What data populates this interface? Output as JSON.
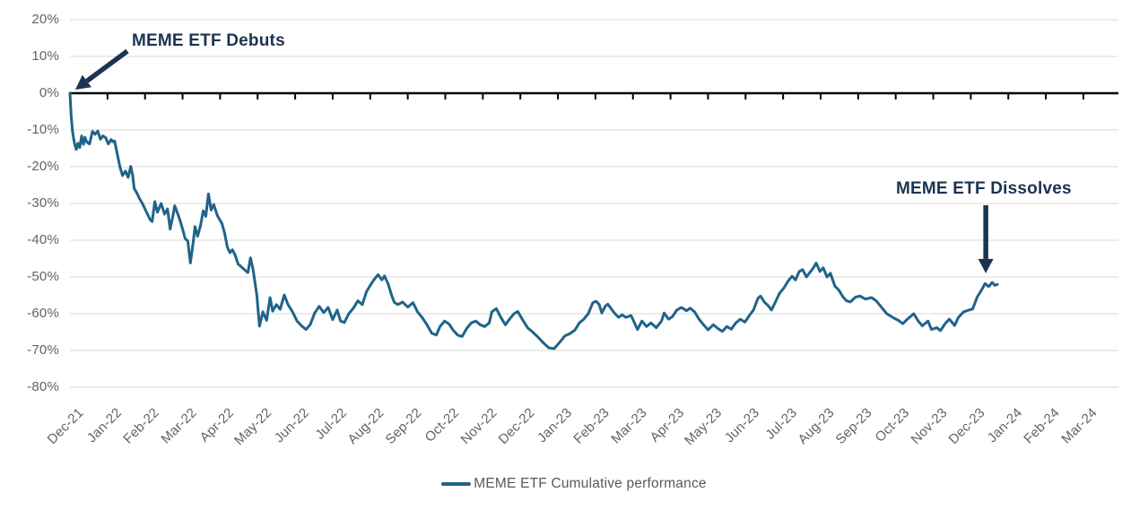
{
  "colors": {
    "series_line": "#1f6488",
    "annotation": "#1c3352",
    "axis_line": "#000000",
    "gridline": "#e0e0e0",
    "axis_text": "#636363",
    "legend_text": "#595959"
  },
  "legend": {
    "label": "MEME ETF Cumulative performance"
  },
  "annotations": {
    "debuts": "MEME ETF Debuts",
    "dissolves": "MEME ETF Dissolves"
  },
  "chart_data": {
    "type": "line",
    "title": "",
    "xlabel": "",
    "ylabel": "",
    "grid": "horizontal",
    "legend_position": "bottom-center",
    "ylim": [
      -80,
      20
    ],
    "y_axis": {
      "ticks": [
        {
          "label": "20%",
          "value": 20
        },
        {
          "label": "10%",
          "value": 10
        },
        {
          "label": "0%",
          "value": 0
        },
        {
          "label": "-10%",
          "value": -10
        },
        {
          "label": "-20%",
          "value": -20
        },
        {
          "label": "-30%",
          "value": -30
        },
        {
          "label": "-40%",
          "value": -40
        },
        {
          "label": "-50%",
          "value": -50
        },
        {
          "label": "-60%",
          "value": -60
        },
        {
          "label": "-70%",
          "value": -70
        },
        {
          "label": "-80%",
          "value": -80
        }
      ]
    },
    "x_axis": {
      "ticks": [
        "Dec-21",
        "Jan-22",
        "Feb-22",
        "Mar-22",
        "Apr-22",
        "May-22",
        "Jun-22",
        "Jul-22",
        "Aug-22",
        "Sep-22",
        "Oct-22",
        "Nov-22",
        "Dec-22",
        "Jan-23",
        "Feb-23",
        "Mar-23",
        "Apr-23",
        "May-23",
        "Jun-23",
        "Jul-23",
        "Aug-23",
        "Sep-23",
        "Oct-23",
        "Nov-23",
        "Dec-23",
        "Jan-24",
        "Feb-24",
        "Mar-24"
      ]
    },
    "annotations": [
      {
        "text": "MEME ETF Debuts",
        "points_to": {
          "month": 0,
          "value": 0
        }
      },
      {
        "text": "MEME ETF Dissolves",
        "points_to": {
          "month": 24.4,
          "value": -49
        }
      }
    ],
    "series": [
      {
        "name": "MEME ETF Cumulative performance",
        "x_unit": "months_after_Dec-21",
        "y_unit": "percent",
        "points": [
          [
            0,
            0
          ],
          [
            0.03,
            -6
          ],
          [
            0.07,
            -10.5
          ],
          [
            0.12,
            -13.6
          ],
          [
            0.17,
            -15.3
          ],
          [
            0.21,
            -13.6
          ],
          [
            0.26,
            -14.8
          ],
          [
            0.31,
            -11.6
          ],
          [
            0.36,
            -13.9
          ],
          [
            0.4,
            -12
          ],
          [
            0.45,
            -13.3
          ],
          [
            0.52,
            -13.8
          ],
          [
            0.6,
            -10.4
          ],
          [
            0.67,
            -11.2
          ],
          [
            0.74,
            -10.3
          ],
          [
            0.81,
            -12.5
          ],
          [
            0.88,
            -11.6
          ],
          [
            0.95,
            -12.1
          ],
          [
            1.02,
            -13.8
          ],
          [
            1.1,
            -12.6
          ],
          [
            1.14,
            -13.2
          ],
          [
            1.19,
            -13
          ],
          [
            1.26,
            -16.5
          ],
          [
            1.33,
            -20
          ],
          [
            1.4,
            -22.4
          ],
          [
            1.48,
            -21.2
          ],
          [
            1.55,
            -22.9
          ],
          [
            1.62,
            -19.9
          ],
          [
            1.67,
            -22.3
          ],
          [
            1.71,
            -25.9
          ],
          [
            1.79,
            -27.3
          ],
          [
            1.86,
            -28.8
          ],
          [
            1.93,
            -30
          ],
          [
            2,
            -31.5
          ],
          [
            2.07,
            -33
          ],
          [
            2.14,
            -34.5
          ],
          [
            2.19,
            -34.9
          ],
          [
            2.26,
            -29.5
          ],
          [
            2.33,
            -32.4
          ],
          [
            2.43,
            -30
          ],
          [
            2.52,
            -32.9
          ],
          [
            2.6,
            -31.5
          ],
          [
            2.67,
            -37
          ],
          [
            2.74,
            -33.5
          ],
          [
            2.79,
            -30.6
          ],
          [
            2.86,
            -32.5
          ],
          [
            2.93,
            -34.5
          ],
          [
            3,
            -37
          ],
          [
            3.07,
            -39.6
          ],
          [
            3.14,
            -40.2
          ],
          [
            3.21,
            -46.2
          ],
          [
            3.29,
            -40
          ],
          [
            3.33,
            -36.3
          ],
          [
            3.4,
            -38.9
          ],
          [
            3.48,
            -36
          ],
          [
            3.55,
            -32
          ],
          [
            3.62,
            -33.5
          ],
          [
            3.69,
            -27.4
          ],
          [
            3.76,
            -31.8
          ],
          [
            3.83,
            -30.3
          ],
          [
            3.93,
            -33.4
          ],
          [
            4.05,
            -35.5
          ],
          [
            4.12,
            -38
          ],
          [
            4.19,
            -41.8
          ],
          [
            4.26,
            -43.4
          ],
          [
            4.33,
            -42.6
          ],
          [
            4.4,
            -44
          ],
          [
            4.48,
            -46.5
          ],
          [
            4.57,
            -47.3
          ],
          [
            4.67,
            -48.2
          ],
          [
            4.74,
            -48.8
          ],
          [
            4.81,
            -44.8
          ],
          [
            4.88,
            -48
          ],
          [
            4.93,
            -51.5
          ],
          [
            4.98,
            -55
          ],
          [
            5.02,
            -60
          ],
          [
            5.05,
            -63.4
          ],
          [
            5.14,
            -59.5
          ],
          [
            5.24,
            -61.8
          ],
          [
            5.33,
            -55.6
          ],
          [
            5.4,
            -59.3
          ],
          [
            5.5,
            -57.5
          ],
          [
            5.6,
            -58.8
          ],
          [
            5.71,
            -54.9
          ],
          [
            5.81,
            -57.5
          ],
          [
            5.93,
            -59.5
          ],
          [
            6.05,
            -62
          ],
          [
            6.17,
            -63.3
          ],
          [
            6.29,
            -64.3
          ],
          [
            6.4,
            -63
          ],
          [
            6.52,
            -59.8
          ],
          [
            6.64,
            -58
          ],
          [
            6.76,
            -59.7
          ],
          [
            6.88,
            -58.3
          ],
          [
            7,
            -61.6
          ],
          [
            7.12,
            -59
          ],
          [
            7.21,
            -62
          ],
          [
            7.31,
            -62.4
          ],
          [
            7.43,
            -60
          ],
          [
            7.55,
            -58.5
          ],
          [
            7.67,
            -56.5
          ],
          [
            7.79,
            -57.5
          ],
          [
            7.9,
            -54
          ],
          [
            8.02,
            -52
          ],
          [
            8.12,
            -50.5
          ],
          [
            8.21,
            -49.4
          ],
          [
            8.31,
            -50.8
          ],
          [
            8.38,
            -49.7
          ],
          [
            8.48,
            -52
          ],
          [
            8.57,
            -55
          ],
          [
            8.64,
            -56.9
          ],
          [
            8.74,
            -57.5
          ],
          [
            8.86,
            -56.8
          ],
          [
            9,
            -58.2
          ],
          [
            9.14,
            -57
          ],
          [
            9.26,
            -59.5
          ],
          [
            9.38,
            -61
          ],
          [
            9.5,
            -62.8
          ],
          [
            9.64,
            -65.3
          ],
          [
            9.76,
            -65.8
          ],
          [
            9.86,
            -63.5
          ],
          [
            9.98,
            -62
          ],
          [
            10.1,
            -62.8
          ],
          [
            10.21,
            -64.5
          ],
          [
            10.33,
            -65.8
          ],
          [
            10.45,
            -66.2
          ],
          [
            10.57,
            -64
          ],
          [
            10.69,
            -62.5
          ],
          [
            10.81,
            -62
          ],
          [
            10.93,
            -63
          ],
          [
            11.05,
            -63.5
          ],
          [
            11.17,
            -62.5
          ],
          [
            11.24,
            -59.5
          ],
          [
            11.36,
            -58.6
          ],
          [
            11.48,
            -61
          ],
          [
            11.6,
            -63
          ],
          [
            11.71,
            -61.5
          ],
          [
            11.83,
            -60
          ],
          [
            11.93,
            -59.4
          ],
          [
            12.05,
            -61.5
          ],
          [
            12.19,
            -63.8
          ],
          [
            12.33,
            -65
          ],
          [
            12.48,
            -66.5
          ],
          [
            12.62,
            -68
          ],
          [
            12.76,
            -69.3
          ],
          [
            12.9,
            -69.5
          ],
          [
            13.07,
            -67.5
          ],
          [
            13.19,
            -66
          ],
          [
            13.31,
            -65.5
          ],
          [
            13.45,
            -64.5
          ],
          [
            13.57,
            -62.5
          ],
          [
            13.69,
            -61.5
          ],
          [
            13.81,
            -60
          ],
          [
            13.93,
            -57
          ],
          [
            14.02,
            -56.6
          ],
          [
            14.1,
            -57.5
          ],
          [
            14.17,
            -59.8
          ],
          [
            14.26,
            -58
          ],
          [
            14.33,
            -57.4
          ],
          [
            14.43,
            -58.8
          ],
          [
            14.52,
            -60
          ],
          [
            14.62,
            -61
          ],
          [
            14.71,
            -60.3
          ],
          [
            14.81,
            -61
          ],
          [
            14.95,
            -60.5
          ],
          [
            15.12,
            -64.3
          ],
          [
            15.24,
            -62
          ],
          [
            15.36,
            -63.5
          ],
          [
            15.48,
            -62.5
          ],
          [
            15.62,
            -63.8
          ],
          [
            15.76,
            -62
          ],
          [
            15.83,
            -59.8
          ],
          [
            15.95,
            -61.5
          ],
          [
            16.05,
            -60.8
          ],
          [
            16.17,
            -59
          ],
          [
            16.29,
            -58.3
          ],
          [
            16.43,
            -59.2
          ],
          [
            16.52,
            -58.5
          ],
          [
            16.64,
            -59.5
          ],
          [
            16.76,
            -61.5
          ],
          [
            16.88,
            -63
          ],
          [
            17,
            -64.4
          ],
          [
            17.14,
            -63
          ],
          [
            17.26,
            -64
          ],
          [
            17.38,
            -64.8
          ],
          [
            17.5,
            -63.5
          ],
          [
            17.62,
            -64.2
          ],
          [
            17.74,
            -62.5
          ],
          [
            17.86,
            -61.5
          ],
          [
            17.98,
            -62.3
          ],
          [
            18.1,
            -60.5
          ],
          [
            18.21,
            -59
          ],
          [
            18.33,
            -55.8
          ],
          [
            18.4,
            -55.2
          ],
          [
            18.5,
            -56.8
          ],
          [
            18.62,
            -58
          ],
          [
            18.69,
            -59
          ],
          [
            18.81,
            -56.5
          ],
          [
            18.9,
            -54.5
          ],
          [
            19.02,
            -53
          ],
          [
            19.14,
            -51
          ],
          [
            19.24,
            -49.8
          ],
          [
            19.33,
            -50.8
          ],
          [
            19.43,
            -48.5
          ],
          [
            19.52,
            -48
          ],
          [
            19.62,
            -50
          ],
          [
            19.71,
            -48.8
          ],
          [
            19.81,
            -47.5
          ],
          [
            19.88,
            -46.2
          ],
          [
            19.98,
            -48.5
          ],
          [
            20.07,
            -47.5
          ],
          [
            20.17,
            -50
          ],
          [
            20.26,
            -49
          ],
          [
            20.38,
            -52.5
          ],
          [
            20.48,
            -53.5
          ],
          [
            20.6,
            -55.5
          ],
          [
            20.69,
            -56.5
          ],
          [
            20.79,
            -56.8
          ],
          [
            20.93,
            -55.5
          ],
          [
            21.05,
            -55.2
          ],
          [
            21.19,
            -56
          ],
          [
            21.36,
            -55.6
          ],
          [
            21.48,
            -56.5
          ],
          [
            21.6,
            -58
          ],
          [
            21.76,
            -60
          ],
          [
            21.95,
            -61.2
          ],
          [
            22.07,
            -61.8
          ],
          [
            22.19,
            -62.7
          ],
          [
            22.31,
            -61.5
          ],
          [
            22.48,
            -60
          ],
          [
            22.6,
            -62
          ],
          [
            22.71,
            -63.3
          ],
          [
            22.86,
            -62
          ],
          [
            22.95,
            -64.3
          ],
          [
            23.1,
            -63.8
          ],
          [
            23.19,
            -64.6
          ],
          [
            23.33,
            -62.5
          ],
          [
            23.43,
            -61.5
          ],
          [
            23.57,
            -63.2
          ],
          [
            23.67,
            -61
          ],
          [
            23.81,
            -59.5
          ],
          [
            23.95,
            -59
          ],
          [
            24.05,
            -58.7
          ],
          [
            24.17,
            -55.5
          ],
          [
            24.29,
            -53.5
          ],
          [
            24.38,
            -51.8
          ],
          [
            24.48,
            -52.6
          ],
          [
            24.57,
            -51.5
          ],
          [
            24.64,
            -52.3
          ],
          [
            24.71,
            -52
          ]
        ]
      }
    ]
  }
}
